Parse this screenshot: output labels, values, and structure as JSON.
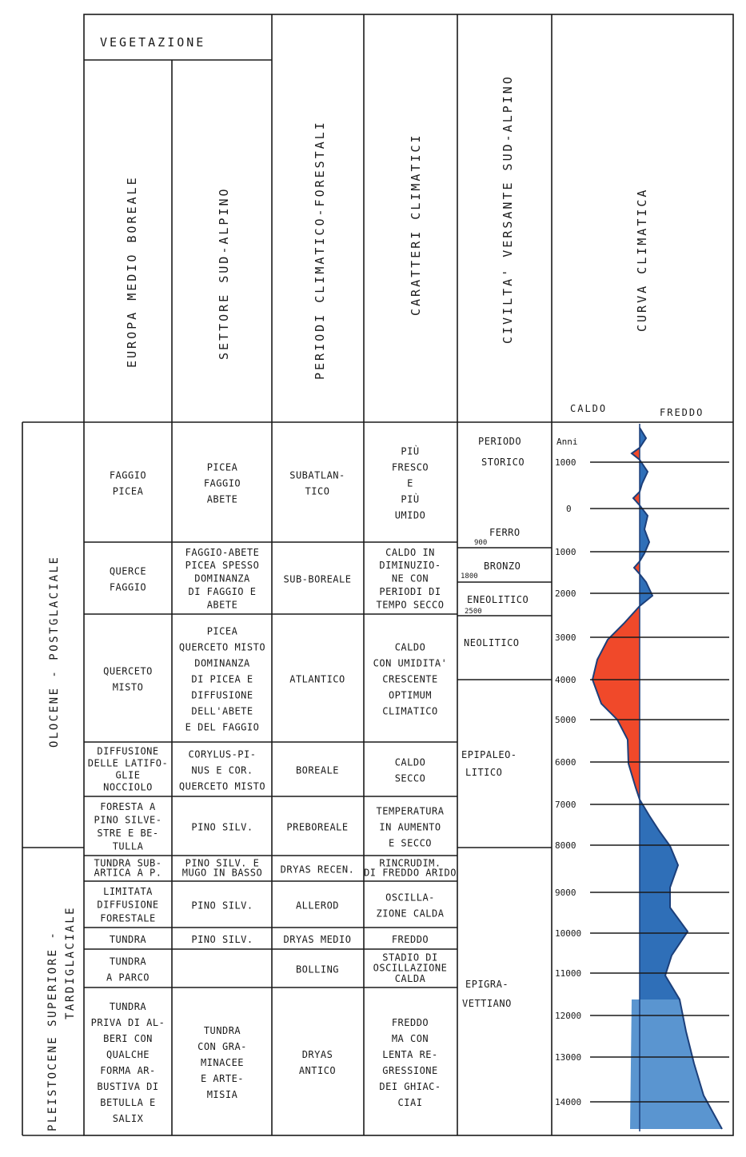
{
  "header": {
    "vegetazione": "VEGETAZIONE",
    "europa": "EUROPA MEDIO BOREALE",
    "settore": "SETTORE SUD-ALPINO",
    "periodi": "PERIODI CLIMATICO-FORESTALI",
    "caratteri": "CARATTERI CLIMATICI",
    "civilta": "CIVILTA' VERSANTE SUD-ALPINO",
    "curva": "CURVA CLIMATICA",
    "caldo": "CALDO",
    "freddo": "FREDDO"
  },
  "eras": {
    "olocene": "OLOCENE - POSTGLACIALE",
    "pleistocene_1": "PLEISTOCENE SUPERIORE -",
    "pleistocene_2": "TARDIGLACIALE"
  },
  "rows": [
    {
      "europa": [
        "FAGGIO",
        "PICEA"
      ],
      "settore": [
        "PICEA",
        "FAGGIO",
        "ABETE"
      ],
      "periodo": [
        "SUBATLAN-",
        "TICO"
      ],
      "caratteri": [
        "PIÙ",
        "FRESCO",
        "E",
        "PIÙ",
        "UMIDO"
      ]
    },
    {
      "europa": [
        "QUERCE",
        "FAGGIO"
      ],
      "settore": [
        "FAGGIO-ABETE",
        "PICEA SPESSO",
        "DOMINANZA",
        "DI FAGGIO E",
        "ABETE"
      ],
      "periodo": [
        "SUB-BOREALE"
      ],
      "caratteri": [
        "CALDO IN",
        "DIMINUZIO-",
        "NE CON",
        "PERIODI DI",
        "TEMPO SECCO"
      ]
    },
    {
      "europa": [
        "QUERCETO",
        "MISTO"
      ],
      "settore": [
        "PICEA",
        "QUERCETO MISTO",
        "DOMINANZA",
        "DI PICEA E",
        "DIFFUSIONE",
        "DELL'ABETE",
        "E DEL FAGGIO"
      ],
      "periodo": [
        "ATLANTICO"
      ],
      "caratteri": [
        "CALDO",
        "CON UMIDITA'",
        "CRESCENTE",
        "OPTIMUM",
        "CLIMATICO"
      ]
    },
    {
      "europa": [
        "DIFFUSIONE",
        "DELLE LATIFO-",
        "GLIE",
        "NOCCIOLO"
      ],
      "settore": [
        "CORYLUS-PI-",
        "NUS E COR.",
        "QUERCETO MISTO"
      ],
      "periodo": [
        "BOREALE"
      ],
      "caratteri": [
        "CALDO",
        "SECCO"
      ]
    },
    {
      "europa": [
        "FORESTA A",
        "PINO SILVE-",
        "STRE E BE-",
        "TULLA"
      ],
      "settore": [
        "PINO SILV."
      ],
      "periodo": [
        "PREBOREALE"
      ],
      "caratteri": [
        "TEMPERATURA",
        "IN AUMENTO",
        "E SECCO"
      ]
    },
    {
      "europa": [
        "TUNDRA SUB-",
        "ARTICA A P."
      ],
      "settore": [
        "PINO SILV. E",
        "MUGO IN BASSO"
      ],
      "periodo": [
        "DRYAS RECEN."
      ],
      "caratteri": [
        "RINCRUDIM.",
        "DI FREDDO ARIDO"
      ]
    },
    {
      "europa": [
        "LIMITATA",
        "DIFFUSIONE",
        "FORESTALE"
      ],
      "settore": [
        "PINO SILV."
      ],
      "periodo": [
        "ALLEROD"
      ],
      "caratteri": [
        "OSCILLA-",
        "ZIONE CALDA"
      ]
    },
    {
      "europa": [
        "TUNDRA"
      ],
      "settore": [
        "PINO SILV."
      ],
      "periodo": [
        "DRYAS MEDIO"
      ],
      "caratteri": [
        "FREDDO"
      ]
    },
    {
      "europa": [
        "TUNDRA",
        "A PARCO"
      ],
      "settore": [],
      "periodo": [
        "BOLLING"
      ],
      "caratteri": [
        "STADIO DI",
        "OSCILLAZIONE",
        "CALDA"
      ]
    },
    {
      "europa": [
        "TUNDRA",
        "PRIVA DI AL-",
        "BERI CON",
        "QUALCHE",
        "FORMA AR-",
        "BUSTIVA DI",
        "BETULLA E",
        "SALIX"
      ],
      "settore": [
        "TUNDRA",
        "CON GRA-",
        "MINACEE",
        "E ARTE-",
        "MISIA"
      ],
      "periodo": [
        "DRYAS",
        "ANTICO"
      ],
      "caratteri": [
        "FREDDO",
        "MA CON",
        "LENTA RE-",
        "GRESSIONE",
        "DEI GHIAC-",
        "CIAI"
      ]
    }
  ],
  "civilta": {
    "storico": [
      "PERIODO",
      "STORICO"
    ],
    "ferro": "FERRO",
    "y900": "900",
    "bronzo": "BRONZO",
    "y1800": "1800",
    "eneolitico": "ENEOLITICO",
    "y2500": "2500",
    "neolitico": "NEOLITICO",
    "epipaleolitico": [
      "EPIPALEO-",
      "LITICO"
    ],
    "epigravettiano": [
      "EPIGRA-",
      "VETTIANO"
    ]
  },
  "years": {
    "anni": "Anni",
    "ticks": [
      "1000",
      "0",
      "1000",
      "2000",
      "3000",
      "4000",
      "5000",
      "6000",
      "7000",
      "8000",
      "9000",
      "10000",
      "11000",
      "12000",
      "13000",
      "14000"
    ]
  },
  "colors": {
    "warm": "#f0492a",
    "cold": "#2f6fb8",
    "cold_light": "#5a95d0",
    "ink": "#1a1a1a"
  }
}
